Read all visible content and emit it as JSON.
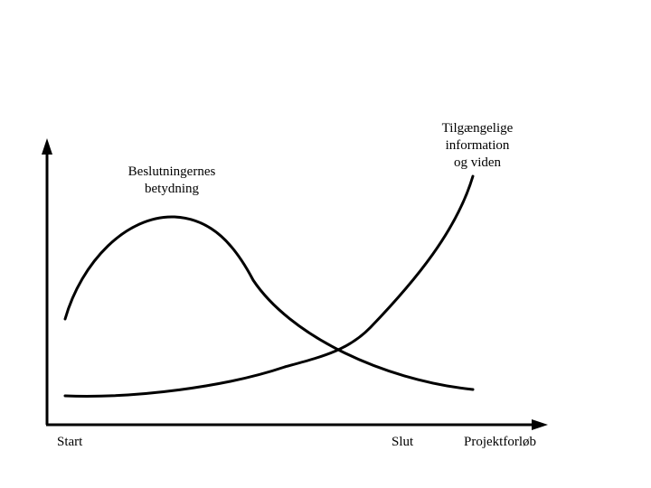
{
  "diagram": {
    "x_axis": {
      "start_label": "Start",
      "end_label": "Slut",
      "axis_title": "Projektforløb"
    },
    "curves": [
      {
        "id": "decision-importance",
        "label_lines": [
          "Beslutningernes",
          "betydning"
        ],
        "trend": "rises to an early peak, then declines"
      },
      {
        "id": "available-information",
        "label_lines": [
          "Tilgængelige",
          "information",
          "og viden"
        ],
        "trend": "low and flat at first, then rises steeply toward the end"
      }
    ],
    "colors": {
      "line": "#000000",
      "background": "#ffffff"
    }
  }
}
